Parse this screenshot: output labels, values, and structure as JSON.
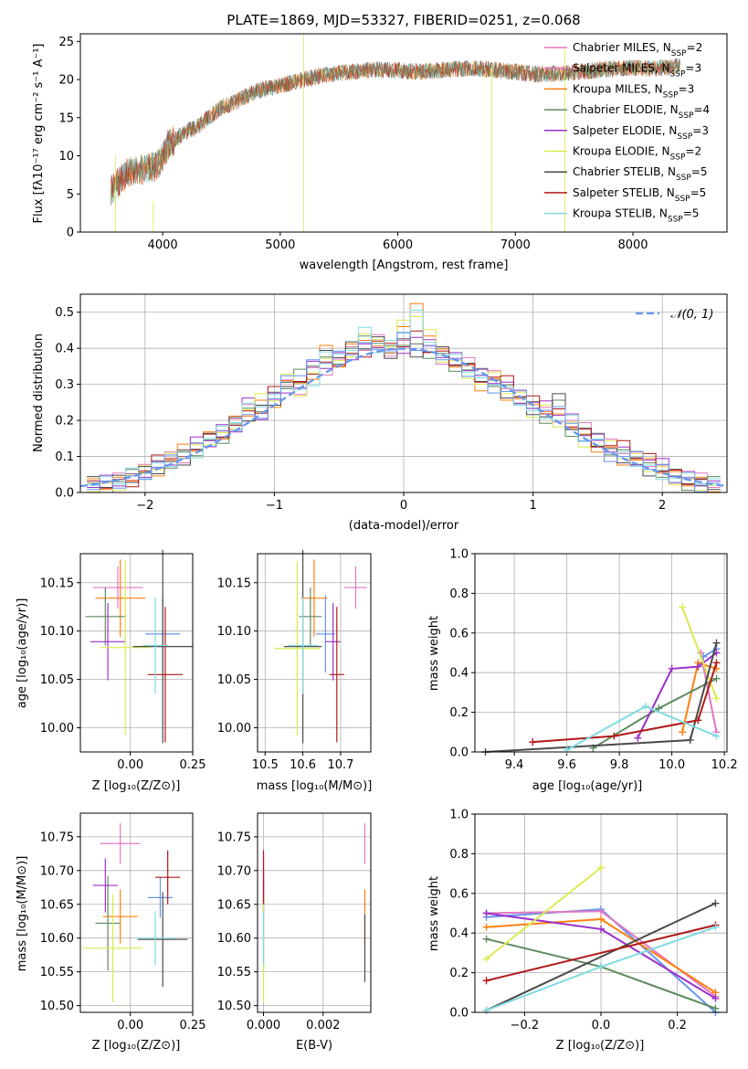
{
  "title": "PLATE=1869, MJD=53327, FIBERID=0251, z=0.068",
  "colors": {
    "palette": [
      "#e377c2",
      "#ff7f0e",
      "#6495ed",
      "#5f8a5f",
      "#9b30c9",
      "#dbea4f",
      "#4a4a4a",
      "#b01818",
      "#7fdbe0"
    ],
    "spectrum_main": "#7f7f7f",
    "gaussian": "#6495ed",
    "grid": "#b0b0b0"
  },
  "panels": {
    "spectrum": {
      "xlabel": "wavelength [Angstrom, rest frame]",
      "ylabel": "Flux [fλ10⁻¹⁷ erg cm⁻² s⁻¹ A⁻¹]",
      "xticks": [
        "4000",
        "5000",
        "6000",
        "7000",
        "8000"
      ],
      "yticks": [
        "0",
        "5",
        "10",
        "15",
        "20",
        "25"
      ],
      "legend": [
        {
          "label": "Chabrier MILES, N",
          "sub": "SSP",
          "suffix": "=2",
          "color": "#e377c2"
        },
        {
          "label": "Salpeter MILES, N",
          "sub": "SSP",
          "suffix": "=3",
          "color": "#e377c2"
        },
        {
          "label": "Kroupa MILES, N",
          "sub": "SSP",
          "suffix": "=3",
          "color": "#ff7f0e"
        },
        {
          "label": "Chabrier ELODIE, N",
          "sub": "SSP",
          "suffix": "=4",
          "color": "#5f8a5f"
        },
        {
          "label": "Salpeter ELODIE, N",
          "sub": "SSP",
          "suffix": "=3",
          "color": "#9b30c9"
        },
        {
          "label": "Kroupa ELODIE, N",
          "sub": "SSP",
          "suffix": "=2",
          "color": "#dbea4f"
        },
        {
          "label": "Chabrier STELIB, N",
          "sub": "SSP",
          "suffix": "=5",
          "color": "#4a4a4a"
        },
        {
          "label": "Salpeter STELIB, N",
          "sub": "SSP",
          "suffix": "=5",
          "color": "#b01818"
        },
        {
          "label": "Kroupa STELIB, N",
          "sub": "SSP",
          "suffix": "=5",
          "color": "#7fdbe0"
        }
      ]
    },
    "hist": {
      "xlabel": "(data-model)/error",
      "ylabel": "Normed distribution",
      "xticks": [
        "−2",
        "−1",
        "0",
        "1",
        "2"
      ],
      "yticks": [
        "0.0",
        "0.1",
        "0.2",
        "0.3",
        "0.4",
        "0.5"
      ],
      "legend": "𝒩(0, 1)"
    },
    "age_z": {
      "xlabel": "Z [log₁₀(Z/Z⊙)]",
      "ylabel": "age  [log₁₀(age/yr)]",
      "xticks": [
        "0.00",
        "0.25"
      ],
      "yticks": [
        "10.00",
        "10.05",
        "10.10",
        "10.15"
      ]
    },
    "age_mass": {
      "xlabel": "mass [log₁₀(M/M⊙)]",
      "xticks": [
        "10.5",
        "10.6",
        "10.7"
      ],
      "yticks": [
        "10.00",
        "10.05",
        "10.10",
        "10.15"
      ]
    },
    "mw_age": {
      "xlabel": "age  [log₁₀(age/yr)]",
      "ylabel": "mass weight",
      "xticks": [
        "9.4",
        "9.6",
        "9.8",
        "10.0",
        "10.2"
      ],
      "yticks": [
        "0.0",
        "0.2",
        "0.4",
        "0.6",
        "0.8",
        "1.0"
      ]
    },
    "mass_z": {
      "xlabel": "Z [log₁₀(Z/Z⊙)]",
      "ylabel": "mass [log₁₀(M/M⊙)]",
      "xticks": [
        "0.00",
        "0.25"
      ],
      "yticks": [
        "10.50",
        "10.55",
        "10.60",
        "10.65",
        "10.70",
        "10.75"
      ]
    },
    "mass_ebv": {
      "xlabel": "E(B-V)",
      "xticks": [
        "0.000",
        "0.002"
      ],
      "yticks": [
        "10.50",
        "10.55",
        "10.60",
        "10.65",
        "10.70",
        "10.75"
      ]
    },
    "mw_z": {
      "xlabel": "Z [log₁₀(Z/Z⊙)]",
      "ylabel": "mass weight",
      "xticks": [
        "−0.2",
        "0.0",
        "0.2"
      ],
      "yticks": [
        "0.0",
        "0.2",
        "0.4",
        "0.6",
        "0.8",
        "1.0"
      ]
    }
  },
  "chart_data": [
    {
      "type": "line",
      "title": "PLATE=1869, MJD=53327, FIBERID=0251, z=0.068",
      "xlabel": "wavelength [Angstrom, rest frame]",
      "ylabel": "Flux [fλ10⁻¹⁷ erg cm⁻² s⁻¹ A⁻¹]",
      "xlim": [
        3300,
        8800
      ],
      "ylim": [
        0,
        26
      ],
      "grid": true,
      "legend": "upper-right",
      "x": [
        3560,
        3700,
        3850,
        3950,
        4050,
        4200,
        4300,
        4400,
        4500,
        4650,
        4800,
        5000,
        5200,
        5400,
        5600,
        5800,
        6000,
        6200,
        6400,
        6600,
        6800,
        7000,
        7200,
        7400,
        7600,
        7800,
        8000,
        8200,
        8400
      ],
      "series": [
        {
          "name": "Chabrier MILES, NSSP=2",
          "values": [
            5.5,
            7.8,
            8.3,
            8.6,
            11.5,
            13.2,
            13.8,
            15.2,
            16.3,
            17.3,
            18.5,
            19.2,
            20.0,
            20.7,
            21.0,
            21.3,
            21.2,
            21.0,
            21.3,
            21.5,
            21.3,
            21.0,
            20.7,
            20.8,
            21.1,
            21.4,
            21.5,
            21.5,
            21.7
          ]
        }
      ]
    },
    {
      "type": "bar",
      "title": "",
      "xlabel": "(data-model)/error",
      "ylabel": "Normed distribution",
      "xlim": [
        -2.5,
        2.5
      ],
      "ylim": [
        0,
        0.55
      ],
      "grid": true,
      "legend": "upper-right",
      "x": [
        -2.4,
        -2.3,
        -2.2,
        -2.1,
        -2.0,
        -1.9,
        -1.8,
        -1.7,
        -1.6,
        -1.5,
        -1.4,
        -1.3,
        -1.2,
        -1.1,
        -1.0,
        -0.9,
        -0.8,
        -0.7,
        -0.6,
        -0.5,
        -0.4,
        -0.3,
        -0.2,
        -0.1,
        0.0,
        0.1,
        0.2,
        0.3,
        0.4,
        0.5,
        0.6,
        0.7,
        0.8,
        0.9,
        1.0,
        1.1,
        1.2,
        1.3,
        1.4,
        1.5,
        1.6,
        1.7,
        1.8,
        1.9,
        2.0,
        2.1,
        2.2,
        2.3,
        2.4
      ],
      "series": [
        {
          "name": "Chabrier MILES",
          "values": [
            0.02,
            0.03,
            0.03,
            0.04,
            0.06,
            0.08,
            0.1,
            0.1,
            0.13,
            0.15,
            0.17,
            0.18,
            0.25,
            0.22,
            0.27,
            0.3,
            0.29,
            0.34,
            0.35,
            0.37,
            0.38,
            0.4,
            0.42,
            0.39,
            0.41,
            0.43,
            0.4,
            0.38,
            0.37,
            0.35,
            0.33,
            0.32,
            0.3,
            0.27,
            0.25,
            0.23,
            0.22,
            0.2,
            0.17,
            0.15,
            0.13,
            0.12,
            0.1,
            0.09,
            0.07,
            0.05,
            0.04,
            0.03,
            0.02
          ]
        },
        {
          "name": "Salpeter MILES",
          "values": [
            0.02,
            0.02,
            0.03,
            0.05,
            0.05,
            0.07,
            0.09,
            0.11,
            0.12,
            0.15,
            0.16,
            0.2,
            0.23,
            0.25,
            0.26,
            0.31,
            0.28,
            0.32,
            0.39,
            0.36,
            0.4,
            0.44,
            0.4,
            0.41,
            0.46,
            0.5,
            0.44,
            0.38,
            0.36,
            0.34,
            0.3,
            0.31,
            0.28,
            0.26,
            0.22,
            0.23,
            0.2,
            0.19,
            0.15,
            0.13,
            0.12,
            0.1,
            0.09,
            0.07,
            0.06,
            0.04,
            0.03,
            0.03,
            0.02
          ]
        },
        {
          "name": "Kroupa STELIB",
          "values": [
            0.02,
            0.02,
            0.03,
            0.04,
            0.06,
            0.07,
            0.08,
            0.1,
            0.12,
            0.14,
            0.16,
            0.19,
            0.21,
            0.23,
            0.26,
            0.3,
            0.33,
            0.35,
            0.37,
            0.38,
            0.4,
            0.41,
            0.42,
            0.39,
            0.42,
            0.4,
            0.39,
            0.38,
            0.36,
            0.34,
            0.32,
            0.3,
            0.28,
            0.26,
            0.24,
            0.21,
            0.25,
            0.18,
            0.16,
            0.14,
            0.11,
            0.1,
            0.09,
            0.07,
            0.06,
            0.04,
            0.03,
            0.02,
            0.02
          ]
        }
      ]
    },
    {
      "type": "scatter",
      "title": "",
      "xlabel": "Z [log₁₀(Z/Z⊙)]",
      "ylabel": "age  [log₁₀(age/yr)]",
      "xlim": [
        -0.2,
        0.25
      ],
      "ylim": [
        9.975,
        10.18
      ],
      "grid": true,
      "points": [
        {
          "x": -0.05,
          "y": 10.145,
          "xerr": 0.1,
          "yerr": 0.022
        },
        {
          "x": -0.04,
          "y": 10.134,
          "xerr": 0.1,
          "yerr": 0.04
        },
        {
          "x": -0.1,
          "y": 10.115,
          "xerr": 0.08,
          "yerr": 0.03
        },
        {
          "x": 0.13,
          "y": 10.097,
          "xerr": 0.07,
          "yerr": 0.04
        },
        {
          "x": -0.09,
          "y": 10.089,
          "xerr": 0.07,
          "yerr": 0.04
        },
        {
          "x": -0.02,
          "y": 10.083,
          "xerr": 0.1,
          "yerr": 0.09
        },
        {
          "x": 0.13,
          "y": 10.084,
          "xerr": 0.12,
          "yerr": 0.1
        },
        {
          "x": 0.14,
          "y": 10.055,
          "xerr": 0.07,
          "yerr": 0.07
        },
        {
          "x": 0.1,
          "y": 10.085,
          "xerr": 0.05,
          "yerr": 0.05
        }
      ]
    },
    {
      "type": "scatter",
      "title": "",
      "xlabel": "mass [log₁₀(M/M⊙)]",
      "ylabel": "",
      "xlim": [
        10.48,
        10.78
      ],
      "ylim": [
        9.975,
        10.18
      ],
      "grid": true,
      "points": [
        {
          "x": 10.74,
          "y": 10.145,
          "xerr": 0.03,
          "yerr": 0.022
        },
        {
          "x": 10.63,
          "y": 10.134,
          "xerr": 0.035,
          "yerr": 0.04
        },
        {
          "x": 10.62,
          "y": 10.115,
          "xerr": 0.03,
          "yerr": 0.03
        },
        {
          "x": 10.66,
          "y": 10.097,
          "xerr": 0.025,
          "yerr": 0.04
        },
        {
          "x": 10.68,
          "y": 10.089,
          "xerr": 0.02,
          "yerr": 0.04
        },
        {
          "x": 10.585,
          "y": 10.082,
          "xerr": 0.06,
          "yerr": 0.09
        },
        {
          "x": 10.6,
          "y": 10.084,
          "xerr": 0.05,
          "yerr": 0.1
        },
        {
          "x": 10.69,
          "y": 10.055,
          "xerr": 0.02,
          "yerr": 0.07
        },
        {
          "x": 10.6,
          "y": 10.085,
          "xerr": 0.04,
          "yerr": 0.05
        }
      ]
    },
    {
      "type": "line",
      "title": "",
      "xlabel": "age  [log₁₀(age/yr)]",
      "ylabel": "mass weight",
      "xlim": [
        9.25,
        10.21
      ],
      "ylim": [
        0,
        1
      ],
      "grid": true,
      "series": [
        {
          "name": "Chabrier MILES",
          "x": [
            10.12,
            10.17
          ],
          "y": [
            0.48,
            0.52
          ]
        },
        {
          "name": "Salpeter MILES",
          "x": [
            10.11,
            10.17
          ],
          "y": [
            0.5,
            0.1
          ]
        },
        {
          "name": "Kroupa MILES",
          "x": [
            10.04,
            10.1,
            10.17
          ],
          "y": [
            0.1,
            0.45,
            0.42
          ]
        },
        {
          "name": "Chabrier ELODIE",
          "x": [
            9.7,
            9.95,
            10.17
          ],
          "y": [
            0.02,
            0.22,
            0.37
          ]
        },
        {
          "name": "Salpeter ELODIE",
          "x": [
            9.87,
            10.0,
            10.1,
            10.17
          ],
          "y": [
            0.07,
            0.42,
            0.43,
            0.5
          ]
        },
        {
          "name": "Kroupa ELODIE",
          "x": [
            10.04,
            10.17
          ],
          "y": [
            0.73,
            0.27
          ]
        },
        {
          "name": "Chabrier STELIB",
          "x": [
            9.29,
            10.07,
            10.17
          ],
          "y": [
            0.0,
            0.06,
            0.55
          ]
        },
        {
          "name": "Salpeter STELIB",
          "x": [
            9.47,
            9.78,
            10.1,
            10.17
          ],
          "y": [
            0.05,
            0.08,
            0.16,
            0.45
          ]
        },
        {
          "name": "Kroupa STELIB",
          "x": [
            9.6,
            9.9,
            10.17
          ],
          "y": [
            0.01,
            0.23,
            0.08
          ]
        }
      ]
    },
    {
      "type": "scatter",
      "title": "",
      "xlabel": "Z [log₁₀(Z/Z⊙)]",
      "ylabel": "mass [log₁₀(M/M⊙)]",
      "xlim": [
        -0.2,
        0.25
      ],
      "ylim": [
        10.49,
        10.785
      ],
      "grid": true,
      "points": [
        {
          "x": -0.04,
          "y": 10.74,
          "xerr": 0.08,
          "yerr": 0.03
        },
        {
          "x": -0.04,
          "y": 10.632,
          "xerr": 0.07,
          "yerr": 0.04
        },
        {
          "x": -0.09,
          "y": 10.622,
          "xerr": 0.05,
          "yerr": 0.07
        },
        {
          "x": 0.12,
          "y": 10.66,
          "xerr": 0.05,
          "yerr": 0.03
        },
        {
          "x": -0.1,
          "y": 10.678,
          "xerr": 0.05,
          "yerr": 0.04
        },
        {
          "x": -0.07,
          "y": 10.585,
          "xerr": 0.12,
          "yerr": 0.08
        },
        {
          "x": 0.13,
          "y": 10.598,
          "xerr": 0.1,
          "yerr": 0.07
        },
        {
          "x": 0.15,
          "y": 10.69,
          "xerr": 0.05,
          "yerr": 0.04
        },
        {
          "x": 0.1,
          "y": 10.6,
          "xerr": 0.08,
          "yerr": 0.04
        }
      ]
    },
    {
      "type": "scatter",
      "title": "",
      "xlabel": "E(B-V)",
      "ylabel": "",
      "xlim": [
        -0.0002,
        0.0036
      ],
      "ylim": [
        10.49,
        10.785
      ],
      "grid": true,
      "points": [
        {
          "x": 0.0034,
          "y": 10.74,
          "xerr": 0.0,
          "yerr": 0.03
        },
        {
          "x": 0.0034,
          "y": 10.632,
          "xerr": 0.0,
          "yerr": 0.04
        },
        {
          "x": 0.0,
          "y": 10.622,
          "xerr": 0.0,
          "yerr": 0.07
        },
        {
          "x": 0.0,
          "y": 10.66,
          "xerr": 0.0,
          "yerr": 0.03
        },
        {
          "x": 0.0,
          "y": 10.678,
          "xerr": 0.0,
          "yerr": 0.04
        },
        {
          "x": 0.0,
          "y": 10.585,
          "xerr": 0.0,
          "yerr": 0.08
        },
        {
          "x": 0.0034,
          "y": 10.585,
          "xerr": 0.0,
          "yerr": 0.05
        },
        {
          "x": 0.0,
          "y": 10.69,
          "xerr": 0.0,
          "yerr": 0.04
        },
        {
          "x": 0.0,
          "y": 10.6,
          "xerr": 0.0,
          "yerr": 0.04
        }
      ]
    },
    {
      "type": "line",
      "title": "",
      "xlabel": "Z [log₁₀(Z/Z⊙)]",
      "ylabel": "mass weight",
      "xlim": [
        -0.33,
        0.33
      ],
      "ylim": [
        0,
        1
      ],
      "grid": true,
      "series": [
        {
          "name": "Chabrier MILES",
          "x": [
            -0.3,
            0.0,
            0.3
          ],
          "y": [
            0.48,
            0.52,
            0.0
          ]
        },
        {
          "name": "Salpeter MILES",
          "x": [
            -0.3,
            0.0,
            0.3
          ],
          "y": [
            0.5,
            0.51,
            0.08
          ]
        },
        {
          "name": "Kroupa MILES",
          "x": [
            -0.3,
            0.0,
            0.3
          ],
          "y": [
            0.43,
            0.47,
            0.1
          ]
        },
        {
          "name": "Chabrier ELODIE",
          "x": [
            -0.3,
            0.0,
            0.3
          ],
          "y": [
            0.37,
            0.23,
            0.02
          ]
        },
        {
          "name": "Salpeter ELODIE",
          "x": [
            -0.3,
            0.0,
            0.3
          ],
          "y": [
            0.5,
            0.42,
            0.07
          ]
        },
        {
          "name": "Kroupa ELODIE",
          "x": [
            -0.3,
            0.0
          ],
          "y": [
            0.27,
            0.73
          ]
        },
        {
          "name": "Chabrier STELIB",
          "x": [
            -0.3,
            0.3
          ],
          "y": [
            0.01,
            0.55
          ]
        },
        {
          "name": "Salpeter STELIB",
          "x": [
            -0.3,
            0.3
          ],
          "y": [
            0.16,
            0.44
          ]
        },
        {
          "name": "Kroupa STELIB",
          "x": [
            -0.3,
            0.0,
            0.3
          ],
          "y": [
            0.01,
            0.23,
            0.43
          ]
        }
      ]
    }
  ]
}
